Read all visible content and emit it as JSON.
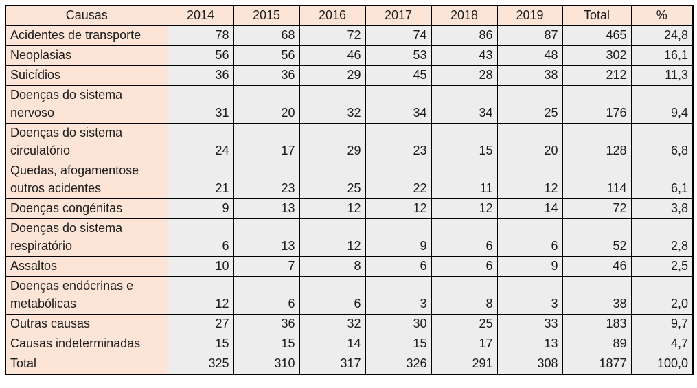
{
  "colors": {
    "header-bg": "#FCE4D6",
    "cell-bg": "#EDEDED",
    "border": "#000000",
    "text": "#1C1C1C"
  },
  "table": {
    "columns": [
      "Causas",
      "2014",
      "2015",
      "2016",
      "2017",
      "2018",
      "2019",
      "Total",
      "%"
    ],
    "rows": [
      {
        "label": "Acidentes de transporte",
        "values": [
          "78",
          "68",
          "72",
          "74",
          "86",
          "87",
          "465",
          "24,8"
        ]
      },
      {
        "label": "Neoplasias",
        "values": [
          "56",
          "56",
          "46",
          "53",
          "43",
          "48",
          "302",
          "16,1"
        ]
      },
      {
        "label": "Suicídios",
        "values": [
          "36",
          "36",
          "29",
          "45",
          "28",
          "38",
          "212",
          "11,3"
        ]
      },
      {
        "label": "Doenças do sistema\nnervoso",
        "values": [
          "31",
          "20",
          "32",
          "34",
          "34",
          "25",
          "176",
          "9,4"
        ]
      },
      {
        "label": "Doenças do sistema\ncirculatório",
        "values": [
          "24",
          "17",
          "29",
          "23",
          "15",
          "20",
          "128",
          "6,8"
        ]
      },
      {
        "label": "Quedas, afogamentose\noutros acidentes",
        "values": [
          "21",
          "23",
          "25",
          "22",
          "11",
          "12",
          "114",
          "6,1"
        ]
      },
      {
        "label": "Doenças congénitas",
        "values": [
          "9",
          "13",
          "12",
          "12",
          "12",
          "14",
          "72",
          "3,8"
        ]
      },
      {
        "label": "Doenças do sistema\nrespiratório",
        "values": [
          "6",
          "13",
          "12",
          "9",
          "6",
          "6",
          "52",
          "2,8"
        ]
      },
      {
        "label": "Assaltos",
        "values": [
          "10",
          "7",
          "8",
          "6",
          "6",
          "9",
          "46",
          "2,5"
        ]
      },
      {
        "label": "Doenças endócrinas e\nmetabólicas",
        "values": [
          "12",
          "6",
          "6",
          "3",
          "8",
          "3",
          "38",
          "2,0"
        ]
      },
      {
        "label": "Outras causas",
        "values": [
          "27",
          "36",
          "32",
          "30",
          "25",
          "33",
          "183",
          "9,7"
        ]
      },
      {
        "label": "Causas indeterminadas",
        "values": [
          "15",
          "15",
          "14",
          "15",
          "17",
          "13",
          "89",
          "4,7"
        ]
      },
      {
        "label": "Total",
        "values": [
          "325",
          "310",
          "317",
          "326",
          "291",
          "308",
          "1877",
          "100,0"
        ]
      }
    ]
  },
  "chart_data": {
    "type": "table",
    "columns": [
      "Causas",
      "2014",
      "2015",
      "2016",
      "2017",
      "2018",
      "2019",
      "Total",
      "%"
    ],
    "rows": [
      [
        "Acidentes de transporte",
        78,
        68,
        72,
        74,
        86,
        87,
        465,
        24.8
      ],
      [
        "Neoplasias",
        56,
        56,
        46,
        53,
        43,
        48,
        302,
        16.1
      ],
      [
        "Suicídios",
        36,
        36,
        29,
        45,
        28,
        38,
        212,
        11.3
      ],
      [
        "Doenças do sistema nervoso",
        31,
        20,
        32,
        34,
        34,
        25,
        176,
        9.4
      ],
      [
        "Doenças do sistema circulatório",
        24,
        17,
        29,
        23,
        15,
        20,
        128,
        6.8
      ],
      [
        "Quedas, afogamentose outros acidentes",
        21,
        23,
        25,
        22,
        11,
        12,
        114,
        6.1
      ],
      [
        "Doenças congénitas",
        9,
        13,
        12,
        12,
        12,
        14,
        72,
        3.8
      ],
      [
        "Doenças do sistema respiratório",
        6,
        13,
        12,
        9,
        6,
        6,
        52,
        2.8
      ],
      [
        "Assaltos",
        10,
        7,
        8,
        6,
        6,
        9,
        46,
        2.5
      ],
      [
        "Doenças endócrinas e metabólicas",
        12,
        6,
        6,
        3,
        8,
        3,
        38,
        2.0
      ],
      [
        "Outras causas",
        27,
        36,
        32,
        30,
        25,
        33,
        183,
        9.7
      ],
      [
        "Causas indeterminadas",
        15,
        15,
        14,
        15,
        17,
        13,
        89,
        4.7
      ],
      [
        "Total",
        325,
        310,
        317,
        326,
        291,
        308,
        1877,
        100.0
      ]
    ]
  }
}
